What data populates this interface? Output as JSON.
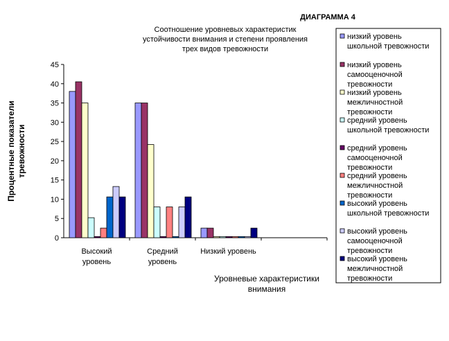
{
  "chart_data": {
    "type": "bar",
    "label": "ДИАГРАММА 4",
    "title": [
      "Соотношение уровневых характеристик",
      "устойчивости внимания и степени проявления",
      "трех видов тревожности"
    ],
    "xlabel": [
      "Уровневые характеристики",
      "внимания"
    ],
    "ylabel": [
      "Процентные показатели",
      "тревожности"
    ],
    "ylim": [
      0,
      45
    ],
    "yticks": [
      "0",
      "5",
      "10",
      "15",
      "20",
      "25",
      "30",
      "35",
      "40",
      "45"
    ],
    "grid": false,
    "legend_position": "right",
    "categories": [
      [
        "Высокий",
        "уровень"
      ],
      [
        "Средний",
        "уровень"
      ],
      [
        "Низкий уровень"
      ],
      [
        ""
      ]
    ],
    "series": [
      {
        "name": [
          "низкий уровень",
          "школьной тревожности"
        ],
        "color": "#9999FF",
        "values": [
          38,
          35,
          2.5,
          0
        ]
      },
      {
        "name": [
          "низкий уровень",
          "самооценочной",
          "тревожности"
        ],
        "color": "#993366",
        "values": [
          40.5,
          35,
          2.5,
          0
        ]
      },
      {
        "name": [
          "низкий уровень",
          "межличностной",
          "тревожности"
        ],
        "color": "#FFFFCC",
        "values": [
          35,
          24.2,
          0.3,
          0
        ]
      },
      {
        "name": [
          "средний уровень",
          "школьной тревожности"
        ],
        "color": "#CCFFFF",
        "values": [
          5.2,
          8,
          0.3,
          0
        ]
      },
      {
        "name": [
          "средний уровень",
          "самооценочной",
          "тревожности"
        ],
        "color": "#660066",
        "values": [
          0.3,
          0.3,
          0.3,
          0
        ]
      },
      {
        "name": [
          "средний уровень",
          "межличностной",
          "тревожности"
        ],
        "color": "#FF8080",
        "values": [
          2.5,
          8,
          0.3,
          0
        ]
      },
      {
        "name": [
          "высокий уровень",
          "школьной тревожности"
        ],
        "color": "#0066CC",
        "values": [
          10.6,
          0.3,
          0.3,
          0
        ]
      },
      {
        "name": [
          "высокий уровень",
          "самооценочной",
          "тревожности"
        ],
        "color": "#CCCCFF",
        "values": [
          13.3,
          8,
          0.3,
          0
        ]
      },
      {
        "name": [
          "высокий уровень",
          "межличностной",
          "тревожности"
        ],
        "color": "#000080",
        "values": [
          10.6,
          10.6,
          2.5,
          0
        ]
      }
    ]
  }
}
